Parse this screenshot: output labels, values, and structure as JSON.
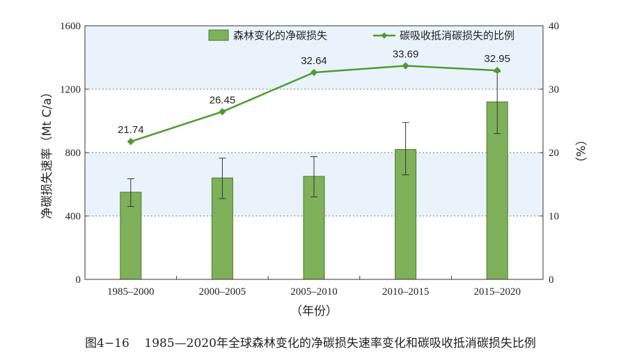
{
  "chart_data": {
    "type": "bar+line",
    "categories": [
      "1985–2000",
      "2000–2005",
      "2005–2010",
      "2010–2015",
      "2015–2020"
    ],
    "series": [
      {
        "name": "森林变化的净碳损失",
        "type": "bar",
        "axis": "left",
        "values": [
          550,
          640,
          650,
          820,
          1120
        ],
        "error_low": [
          460,
          510,
          520,
          660,
          920
        ],
        "error_high": [
          635,
          765,
          775,
          990,
          1310
        ]
      },
      {
        "name": "碳吸收抵消碳损失的比例",
        "type": "line",
        "axis": "right",
        "values": [
          21.74,
          26.45,
          32.64,
          33.69,
          32.95
        ],
        "labels": [
          "21.74",
          "26.45",
          "32.64",
          "33.69",
          "32.95"
        ]
      }
    ],
    "ylabel": "净碳损失速率（Mt C/a）",
    "y2label": "（%）",
    "xlabel": "（年份）",
    "ylim": [
      0,
      1600
    ],
    "y2lim": [
      0,
      40
    ],
    "yticks": [
      0,
      400,
      800,
      1200,
      1600
    ],
    "y2ticks": [
      0,
      10,
      20,
      30,
      40
    ],
    "grid": "horizontal dotted",
    "legend": "top",
    "bands": [
      [
        400,
        800
      ],
      [
        1200,
        1600
      ]
    ],
    "colors": {
      "bar": "#7fb05a",
      "bar_edge": "#4a7a2e",
      "line": "#4f9a2e",
      "band": "#eaf3fb",
      "error": "#333333"
    }
  },
  "caption": {
    "number": "图4−16",
    "text": "1985—2020年全球森林变化的净碳损失速率变化和碳吸收抵消碳损失比例"
  }
}
